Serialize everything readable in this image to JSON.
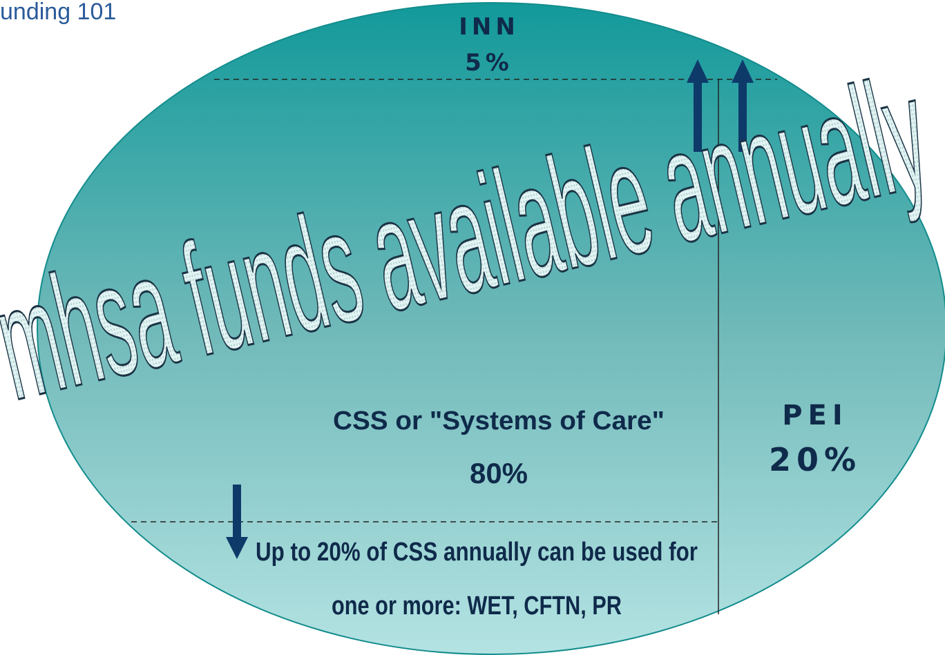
{
  "header": {
    "title": "unding 101"
  },
  "diagram": {
    "banner": "mhsa funds available annually",
    "inn": {
      "label": "INN",
      "share": "5%"
    },
    "css": {
      "label": "CSS or \"Systems of Care\"",
      "share": "80%"
    },
    "pei": {
      "label": "PEI",
      "share": "20%"
    },
    "note": [
      "Up to 20% of CSS annually can be used for",
      "one or more: WET, CFTN, PR"
    ]
  }
}
